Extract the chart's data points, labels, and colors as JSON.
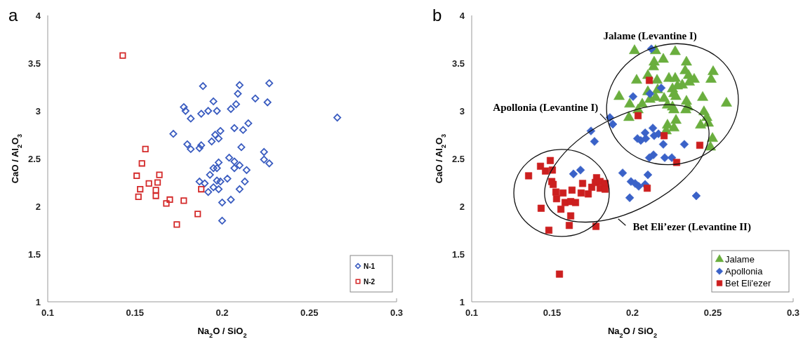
{
  "chart_data": [
    {
      "type": "scatter",
      "title": "a",
      "xlabel": "Na$_{2}$O / SiO$_{2}$",
      "ylabel": "CaO / Al$_{2}$O$_{3}$",
      "xlim": [
        0.1,
        0.3
      ],
      "ylim": [
        1,
        4
      ],
      "xticks": [
        0.1,
        0.15,
        0.2,
        0.25,
        0.3
      ],
      "yticks": [
        1,
        1.5,
        2,
        2.5,
        3,
        3.5,
        4
      ],
      "grid": false,
      "legend": "bottom right",
      "series": [
        {
          "name": "N-1",
          "color": "#3a5cc0",
          "marker": "diamond",
          "x": [
            0.189,
            0.21,
            0.227,
            0.209,
            0.195,
            0.219,
            0.226,
            0.208,
            0.178,
            0.179,
            0.192,
            0.197,
            0.205,
            0.188,
            0.182,
            0.215,
            0.207,
            0.212,
            0.199,
            0.196,
            0.172,
            0.198,
            0.194,
            0.18,
            0.182,
            0.187,
            0.188,
            0.211,
            0.224,
            0.224,
            0.227,
            0.204,
            0.207,
            0.198,
            0.21,
            0.207,
            0.214,
            0.195,
            0.197,
            0.193,
            0.203,
            0.187,
            0.197,
            0.199,
            0.19,
            0.213,
            0.195,
            0.198,
            0.192,
            0.21,
            0.2,
            0.205,
            0.2,
            0.266
          ],
          "values": [
            3.26,
            3.27,
            3.29,
            3.18,
            3.1,
            3.13,
            3.09,
            3.07,
            3.04,
            3.0,
            3.0,
            3.0,
            3.02,
            2.97,
            2.92,
            2.87,
            2.82,
            2.8,
            2.79,
            2.75,
            2.76,
            2.71,
            2.68,
            2.65,
            2.6,
            2.61,
            2.64,
            2.62,
            2.57,
            2.49,
            2.45,
            2.51,
            2.47,
            2.46,
            2.43,
            2.4,
            2.38,
            2.4,
            2.4,
            2.33,
            2.29,
            2.26,
            2.27,
            2.26,
            2.24,
            2.26,
            2.2,
            2.18,
            2.15,
            2.18,
            2.04,
            2.07,
            1.85,
            2.93
          ]
        },
        {
          "name": "N-2",
          "color": "#d42a2a",
          "marker": "square",
          "x": [
            0.143,
            0.156,
            0.154,
            0.151,
            0.164,
            0.158,
            0.163,
            0.153,
            0.162,
            0.152,
            0.162,
            0.17,
            0.168,
            0.178,
            0.188,
            0.186,
            0.174
          ],
          "values": [
            3.58,
            2.6,
            2.45,
            2.32,
            2.33,
            2.24,
            2.25,
            2.18,
            2.17,
            2.1,
            2.11,
            2.07,
            2.03,
            2.06,
            2.18,
            1.92,
            1.81
          ]
        }
      ]
    },
    {
      "type": "scatter",
      "title": "b",
      "xlabel": "Na$_{2}$O / SiO$_{2}$",
      "ylabel": "CaO / Al$_{2}$O$_{3}$",
      "xlim": [
        0.1,
        0.3
      ],
      "ylim": [
        1,
        4
      ],
      "xticks": [
        0.1,
        0.15,
        0.2,
        0.25,
        0.3
      ],
      "yticks": [
        1,
        1.5,
        2,
        2.5,
        3,
        3.5,
        4
      ],
      "grid": false,
      "legend": "bottom right",
      "annotations": [
        "Jalame (Levantine I)",
        "Apollonia (Levantine I)",
        "Bet Eli’ezer (Levantine II)"
      ],
      "series": [
        {
          "name": "Jalame",
          "color": "#6aae3e",
          "marker": "triangle",
          "x": [
            0.2013,
            0.2144,
            0.2266,
            0.2192,
            0.2135,
            0.2336,
            0.2502,
            0.2328,
            0.2096,
            0.2131,
            0.2026,
            0.2153,
            0.2227,
            0.2266,
            0.2349,
            0.2384,
            0.2489,
            0.2354,
            0.231,
            0.228,
            0.2096,
            0.2157,
            0.2249,
            0.2258,
            0.227,
            0.2144,
            0.2197,
            0.1917,
            0.2109,
            0.2437,
            0.2585,
            0.2336,
            0.2218,
            0.2061,
            0.1983,
            0.2345,
            0.2249,
            0.2332,
            0.2035,
            0.2258,
            0.2445,
            0.2463,
            0.2271,
            0.2472,
            0.2424,
            0.2218,
            0.2258,
            0.221,
            0.1978,
            0.2498,
            0.2485
          ],
          "values": [
            3.63,
            3.63,
            3.62,
            3.54,
            3.51,
            3.51,
            3.41,
            3.42,
            3.37,
            3.46,
            3.32,
            3.32,
            3.34,
            3.34,
            3.37,
            3.33,
            3.33,
            3.3,
            3.27,
            3.26,
            3.2,
            3.22,
            3.23,
            3.18,
            3.15,
            3.14,
            3.13,
            3.15,
            3.12,
            3.14,
            3.08,
            3.1,
            3.06,
            3.07,
            3.07,
            3.04,
            3.04,
            3.01,
            3.01,
            3.01,
            2.99,
            2.93,
            2.9,
            2.87,
            2.85,
            2.85,
            2.82,
            2.79,
            2.93,
            2.71,
            2.62
          ]
        },
        {
          "name": "Apollonia",
          "color": "#3a62c8",
          "marker": "diamond",
          "x": [
            0.2118,
            0.2179,
            0.2109,
            0.2004,
            0.186,
            0.1878,
            0.1742,
            0.1764,
            0.2127,
            0.2079,
            0.2135,
            0.2162,
            0.2031,
            0.2052,
            0.2083,
            0.2192,
            0.2323,
            0.2131,
            0.2105,
            0.2201,
            0.2245,
            0.1677,
            0.1633,
            0.1939,
            0.2096,
            0.1991,
            0.2017,
            0.2039,
            0.2079,
            0.1983,
            0.2397
          ],
          "values": [
            3.65,
            3.24,
            3.18,
            3.15,
            2.93,
            2.86,
            2.79,
            2.68,
            2.82,
            2.77,
            2.74,
            2.76,
            2.71,
            2.69,
            2.71,
            2.65,
            2.65,
            2.54,
            2.51,
            2.51,
            2.51,
            2.38,
            2.34,
            2.35,
            2.33,
            2.26,
            2.24,
            2.21,
            2.23,
            2.09,
            2.11
          ]
        },
        {
          "name": "Bet Eli'ezer",
          "color": "#cc1f1f",
          "marker": "square",
          "x": [
            0.2105,
            0.2035,
            0.2197,
            0.2419,
            0.2275,
            0.2092,
            0.1354,
            0.1428,
            0.1489,
            0.1459,
            0.1502,
            0.1498,
            0.1507,
            0.1524,
            0.1568,
            0.1528,
            0.1624,
            0.169,
            0.1681,
            0.1725,
            0.1747,
            0.1777,
            0.1769,
            0.1799,
            0.183,
            0.1799,
            0.183,
            0.1581,
            0.1616,
            0.1646,
            0.1555,
            0.1432,
            0.1616,
            0.1607,
            0.148,
            0.1773,
            0.1546
          ],
          "values": [
            3.32,
            2.95,
            2.74,
            2.64,
            2.46,
            2.19,
            2.32,
            2.42,
            2.48,
            2.37,
            2.38,
            2.26,
            2.23,
            2.15,
            2.14,
            2.08,
            2.17,
            2.24,
            2.14,
            2.13,
            2.2,
            2.3,
            2.25,
            2.26,
            2.24,
            2.19,
            2.18,
            2.04,
            2.05,
            2.04,
            1.97,
            1.98,
            1.9,
            1.8,
            1.75,
            1.79,
            1.29
          ]
        }
      ]
    }
  ]
}
